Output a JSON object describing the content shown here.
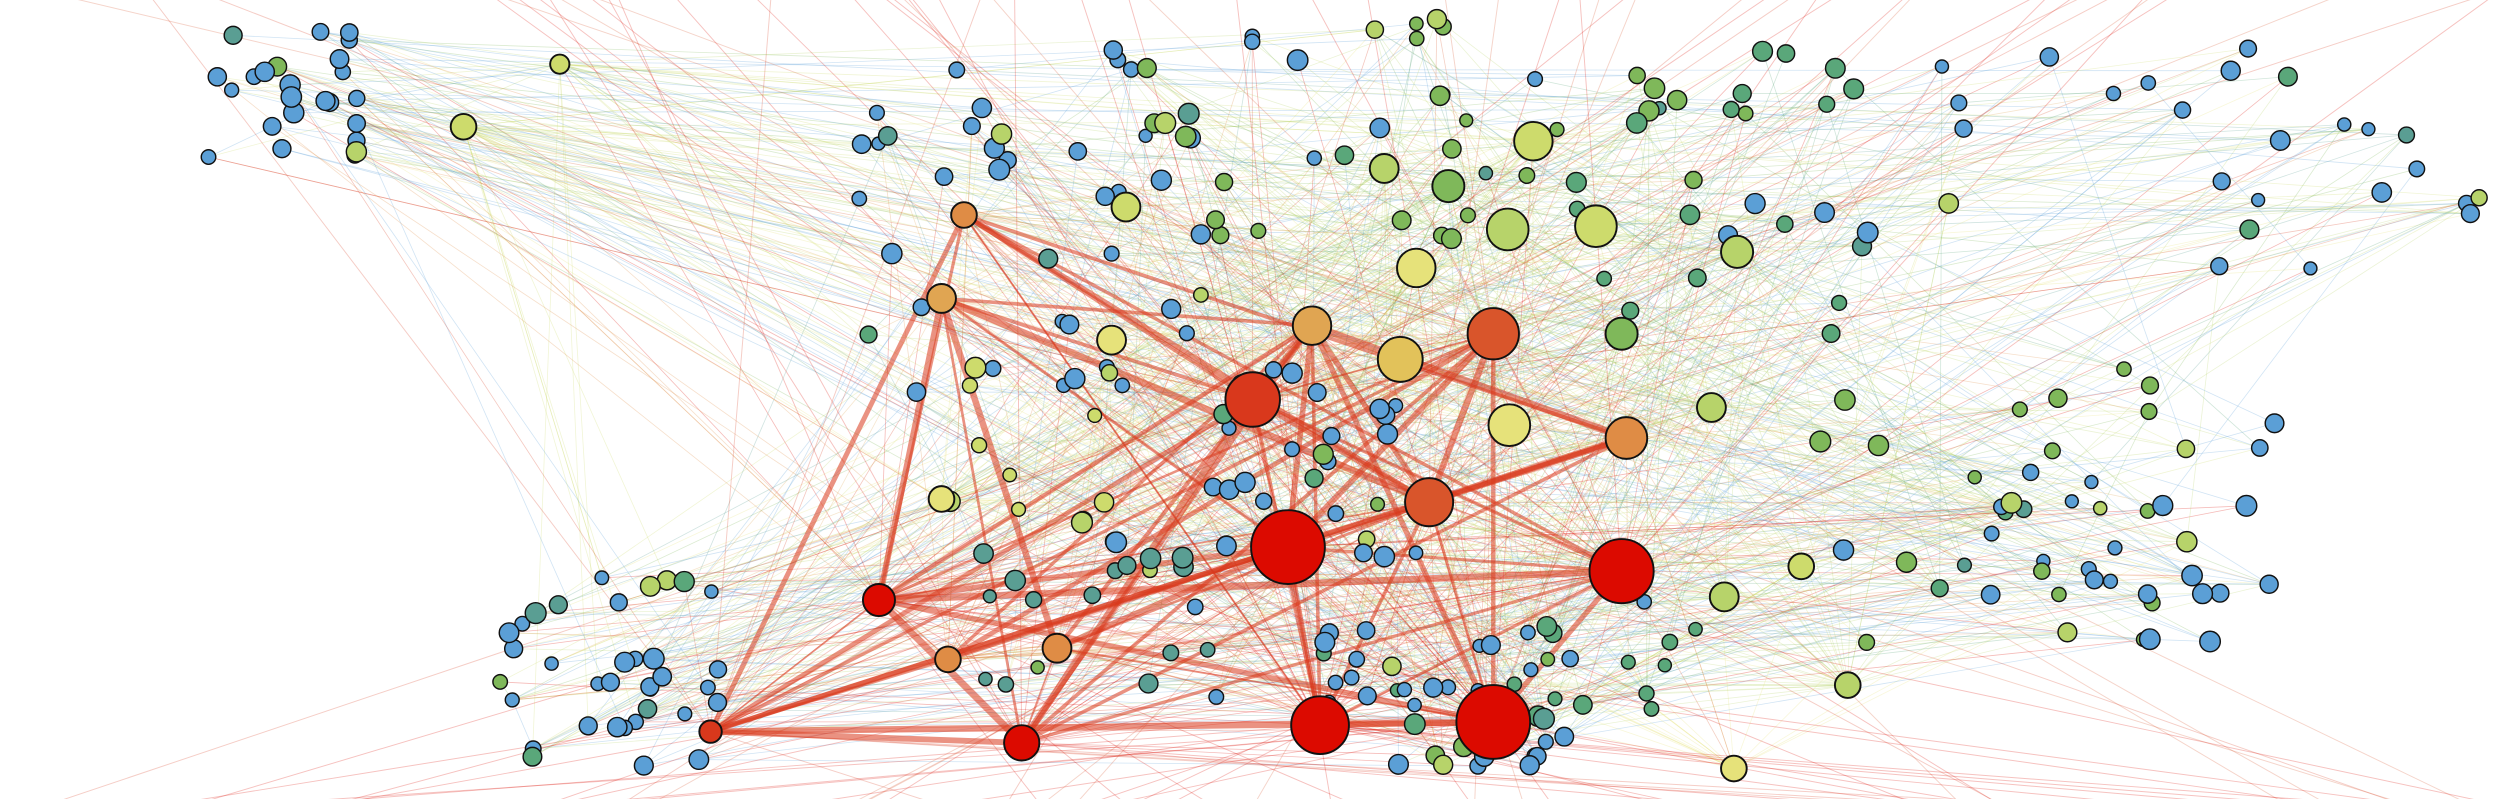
{
  "diagram": {
    "type": "network-graph",
    "background": "#ffffff",
    "node_stroke": "#111111",
    "palette": {
      "hub_red": "#dc0a00",
      "red_orange": "#d9381c",
      "orange_red": "#d9552b",
      "orange": "#df8c45",
      "light_orange": "#e0a552",
      "gold": "#e2c25a",
      "yellow": "#e6e27a",
      "yellow_green": "#cddb6c",
      "light_green": "#b7d36a",
      "green": "#7fb85a",
      "teal_green": "#5aa77a",
      "teal": "#5a9e93",
      "blue": "#5b9fd6"
    }
  }
}
